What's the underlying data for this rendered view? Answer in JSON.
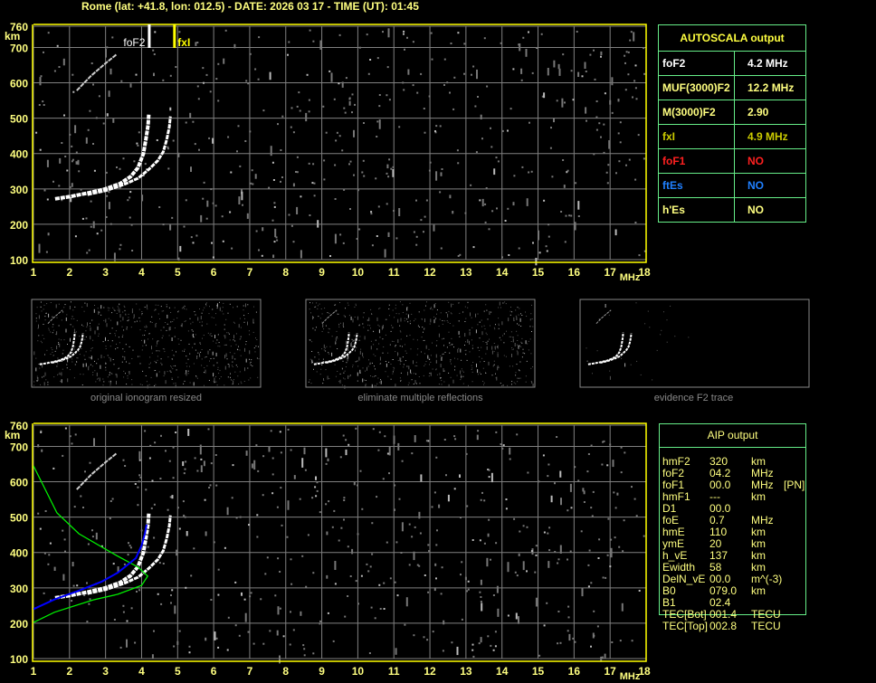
{
  "title": "Rome (lat: +41.8, lon: 012.5) - DATE: 2026 03 17 - TIME (UT): 01:45",
  "colors": {
    "axis": "#ffff80",
    "grid": "#808080",
    "frame": "#ffff00",
    "table_border": "#66ee88",
    "o_trace": "#ffffff",
    "profile": "#00ee00",
    "fit": "#0000ff",
    "no_red": "#ff2020",
    "no_blue": "#2080ff",
    "fxi": "#cccc00"
  },
  "autoscala": {
    "header": "AUTOSCALA output",
    "rows": [
      {
        "label": "foF2",
        "value": "4.2 MHz",
        "color": "#ffffff"
      },
      {
        "label": "MUF(3000)F2",
        "value": "12.2 MHz",
        "color": "#ffff80"
      },
      {
        "label": "M(3000)F2",
        "value": "2.90",
        "color": "#ffff80"
      },
      {
        "label": "fxI",
        "value": "4.9 MHz",
        "color": "#cccc00"
      },
      {
        "label": "foF1",
        "value": "NO",
        "color": "#ff2020"
      },
      {
        "label": "ftEs",
        "value": "NO",
        "color": "#2080ff"
      },
      {
        "label": "h'Es",
        "value": "NO",
        "color": "#ffff80"
      }
    ]
  },
  "aip": {
    "header": "AIP output",
    "rows": [
      {
        "label": "hmF2",
        "value": "320",
        "unit": "km",
        "extra": ""
      },
      {
        "label": "foF2",
        "value": "04.2",
        "unit": "MHz",
        "extra": ""
      },
      {
        "label": "foF1",
        "value": "00.0",
        "unit": "MHz",
        "extra": "[PN]"
      },
      {
        "label": "hmF1",
        "value": "---",
        "unit": "km",
        "extra": ""
      },
      {
        "label": "D1",
        "value": "00.0",
        "unit": "",
        "extra": ""
      },
      {
        "label": "foE",
        "value": "0.7",
        "unit": "MHz",
        "extra": ""
      },
      {
        "label": "hmE",
        "value": "110",
        "unit": "km",
        "extra": ""
      },
      {
        "label": "ymE",
        "value": "20",
        "unit": "km",
        "extra": ""
      },
      {
        "label": "h_vE",
        "value": "137",
        "unit": "km",
        "extra": ""
      },
      {
        "label": "Ewidth",
        "value": "58",
        "unit": "km",
        "extra": ""
      },
      {
        "label": "DelN_vE",
        "value": "00.0",
        "unit": "m^(-3)",
        "extra": ""
      },
      {
        "label": "B0",
        "value": "079.0",
        "unit": "km",
        "extra": ""
      },
      {
        "label": "B1",
        "value": "02.4",
        "unit": "",
        "extra": ""
      },
      {
        "label": "TEC[Bot]",
        "value": "001.4",
        "unit": "TECU",
        "extra": ""
      },
      {
        "label": "TEC[Top]",
        "value": "002.8",
        "unit": "TECU",
        "extra": ""
      }
    ]
  },
  "thumbnails": [
    {
      "label": "original ionogram resized"
    },
    {
      "label": "eliminate multiple reflections"
    },
    {
      "label": "evidence F2 trace"
    }
  ],
  "markers": {
    "fof2_label": "foF2",
    "fof2_freq": 4.2,
    "fxi_label": "fxI",
    "fxi_freq": 4.9
  },
  "chart_data": [
    {
      "type": "scatter",
      "title": "",
      "xlabel": "MHz",
      "ylabel": "km",
      "xlim": [
        1,
        18
      ],
      "ylim": [
        100,
        760
      ],
      "xticks": [
        "1",
        "2",
        "3",
        "4",
        "5",
        "6",
        "7",
        "8",
        "9",
        "10",
        "11",
        "12",
        "13",
        "14",
        "15",
        "16",
        "17",
        "18"
      ],
      "yticks": [
        "760",
        "700",
        "600",
        "500",
        "400",
        "300",
        "200",
        "100"
      ],
      "grid": true,
      "series": [
        {
          "x": [
            1.6,
            2.0,
            2.5,
            3.0,
            3.4,
            3.7,
            3.9,
            4.05,
            4.12,
            4.18,
            4.2
          ],
          "y": [
            272,
            278,
            288,
            300,
            315,
            335,
            360,
            400,
            440,
            480,
            510
          ]
        },
        {
          "x": [
            2.5,
            3.0,
            3.5,
            3.9,
            4.2,
            4.45,
            4.6,
            4.7,
            4.77,
            4.8
          ],
          "y": [
            284,
            295,
            312,
            330,
            355,
            380,
            405,
            440,
            475,
            505
          ]
        },
        {
          "x": [
            2.2,
            2.6,
            3.0,
            3.3
          ],
          "y": [
            578,
            620,
            655,
            680
          ]
        }
      ]
    },
    {
      "type": "line",
      "title": "",
      "xlabel": "MHz",
      "ylabel": "km",
      "xlim": [
        1,
        18
      ],
      "ylim": [
        100,
        760
      ],
      "xticks": [
        "1",
        "2",
        "3",
        "4",
        "5",
        "6",
        "7",
        "8",
        "9",
        "10",
        "11",
        "12",
        "13",
        "14",
        "15",
        "16",
        "17",
        "18"
      ],
      "yticks": [
        "760",
        "700",
        "600",
        "500",
        "400",
        "300",
        "200",
        "100"
      ],
      "grid": true,
      "series": [
        {
          "x": [
            1.6,
            2.0,
            2.5,
            3.0,
            3.4,
            3.7,
            3.9,
            4.05,
            4.12,
            4.18,
            4.2
          ],
          "y": [
            272,
            278,
            288,
            300,
            315,
            335,
            360,
            400,
            440,
            480,
            510
          ]
        },
        {
          "x": [
            2.5,
            3.0,
            3.5,
            3.9,
            4.2,
            4.45,
            4.6,
            4.7,
            4.77,
            4.8
          ],
          "y": [
            284,
            295,
            312,
            330,
            355,
            380,
            405,
            440,
            475,
            505
          ]
        },
        {
          "x": [
            2.2,
            2.6,
            3.0,
            3.3
          ],
          "y": [
            578,
            620,
            655,
            680
          ]
        },
        {
          "x": [
            1.0,
            1.65,
            2.26,
            3.26,
            3.91,
            4.17,
            4.0,
            3.34,
            2.66,
            1.58,
            1.0
          ],
          "y": [
            645,
            512,
            453,
            394,
            358,
            333,
            307,
            282,
            266,
            231,
            202
          ]
        },
        {
          "x": [
            1.0,
            1.6,
            2.26,
            2.9,
            3.34,
            3.84,
            4.0,
            4.09,
            4.14
          ],
          "y": [
            240,
            268,
            292,
            318,
            343,
            384,
            420,
            453,
            479
          ]
        }
      ]
    }
  ]
}
